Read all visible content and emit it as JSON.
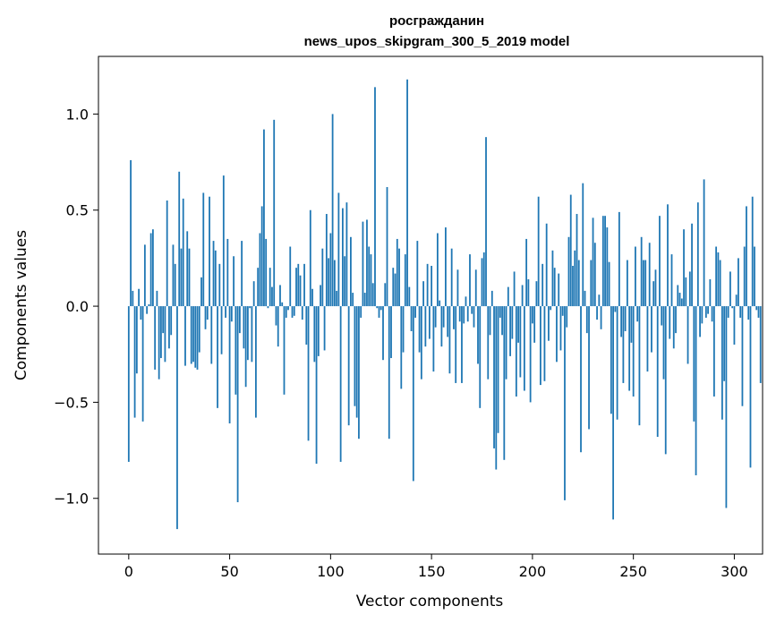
{
  "chart_data": {
    "type": "bar",
    "title": "росгражданин",
    "subtitle": "news_upos_skipgram_300_5_2019 model",
    "xlabel": "Vector components",
    "ylabel": "Components values",
    "xlim": [
      -15,
      314
    ],
    "ylim": [
      -1.29,
      1.3
    ],
    "xticks": [
      0,
      50,
      100,
      150,
      200,
      250,
      300
    ],
    "yticks": [
      -1.0,
      -0.5,
      0.0,
      0.5,
      1.0
    ],
    "ytick_labels": [
      "−1.0",
      "−0.5",
      "0.0",
      "0.5",
      "1.0"
    ],
    "xtick_labels": [
      "0",
      "50",
      "100",
      "150",
      "200",
      "250",
      "300"
    ],
    "grid": false,
    "bar_color": "#1f77b4",
    "values": [
      -0.81,
      0.76,
      0.08,
      -0.58,
      -0.35,
      0.09,
      -0.07,
      -0.6,
      0.32,
      -0.04,
      0.01,
      0.38,
      0.4,
      -0.33,
      0.08,
      -0.38,
      -0.27,
      -0.14,
      -0.29,
      0.55,
      -0.22,
      -0.15,
      0.32,
      0.22,
      -1.16,
      0.7,
      0.3,
      0.56,
      -0.31,
      0.39,
      0.3,
      -0.3,
      -0.29,
      -0.32,
      -0.33,
      -0.24,
      0.15,
      0.59,
      -0.12,
      -0.07,
      0.57,
      -0.3,
      0.34,
      0.29,
      -0.53,
      0.22,
      -0.25,
      0.68,
      -0.06,
      0.35,
      -0.61,
      -0.08,
      0.26,
      -0.46,
      -1.02,
      -0.14,
      0.34,
      -0.22,
      -0.42,
      -0.28,
      -0.01,
      -0.29,
      0.13,
      -0.58,
      0.2,
      0.38,
      0.52,
      0.92,
      0.35,
      -0.01,
      0.2,
      0.1,
      0.97,
      -0.1,
      -0.21,
      0.11,
      0.02,
      -0.46,
      -0.06,
      -0.02,
      0.31,
      -0.06,
      -0.05,
      0.2,
      0.22,
      0.16,
      -0.07,
      0.22,
      -0.2,
      -0.7,
      0.5,
      0.09,
      -0.29,
      -0.82,
      -0.26,
      0.11,
      0.3,
      -0.23,
      0.48,
      0.25,
      0.38,
      1.0,
      0.24,
      0.08,
      0.59,
      -0.81,
      0.51,
      0.26,
      0.54,
      -0.62,
      0.36,
      0.07,
      -0.52,
      -0.58,
      -0.69,
      -0.06,
      0.44,
      0.07,
      0.45,
      0.31,
      0.27,
      0.12,
      1.14,
      -0.01,
      -0.06,
      -0.02,
      -0.28,
      0.12,
      0.62,
      -0.69,
      -0.27,
      0.2,
      0.17,
      0.35,
      0.3,
      -0.43,
      -0.24,
      0.27,
      1.18,
      0.1,
      -0.13,
      -0.91,
      -0.06,
      0.34,
      -0.24,
      -0.38,
      0.13,
      -0.21,
      0.22,
      -0.17,
      0.21,
      -0.34,
      -0.11,
      0.38,
      0.03,
      -0.21,
      -0.11,
      0.41,
      -0.16,
      -0.35,
      0.3,
      -0.12,
      -0.4,
      0.19,
      -0.08,
      -0.4,
      -0.09,
      0.05,
      -0.08,
      0.27,
      -0.04,
      -0.11,
      0.19,
      -0.3,
      -0.53,
      0.25,
      0.28,
      0.88,
      -0.38,
      -0.15,
      0.08,
      -0.74,
      -0.85,
      -0.66,
      -0.06,
      -0.15,
      -0.8,
      -0.38,
      0.1,
      -0.26,
      -0.17,
      0.18,
      -0.47,
      -0.19,
      -0.37,
      0.11,
      -0.44,
      0.35,
      0.14,
      -0.5,
      -0.09,
      -0.19,
      0.13,
      0.57,
      -0.41,
      0.22,
      -0.39,
      0.43,
      -0.18,
      -0.02,
      0.29,
      0.2,
      -0.29,
      0.17,
      -0.23,
      -0.05,
      -1.01,
      -0.11,
      0.36,
      0.58,
      0.21,
      0.29,
      0.48,
      0.24,
      -0.76,
      0.64,
      0.08,
      -0.14,
      -0.64,
      0.24,
      0.46,
      0.33,
      -0.07,
      0.06,
      -0.12,
      0.47,
      0.47,
      0.41,
      0.23,
      -0.56,
      -1.11,
      -0.03,
      -0.59,
      0.49,
      -0.16,
      -0.4,
      -0.13,
      0.24,
      -0.44,
      -0.19,
      -0.47,
      0.31,
      -0.08,
      -0.62,
      0.36,
      0.24,
      0.24,
      -0.34,
      0.33,
      -0.24,
      0.13,
      0.19,
      -0.68,
      0.47,
      -0.1,
      -0.38,
      -0.77,
      0.53,
      -0.17,
      0.27,
      -0.22,
      -0.14,
      0.11,
      0.07,
      0.04,
      0.4,
      0.15,
      -0.3,
      0.18,
      0.43,
      -0.6,
      -0.88,
      0.54,
      -0.16,
      -0.09,
      0.66,
      -0.06,
      -0.04,
      0.14,
      -0.08,
      -0.47,
      0.31,
      0.28,
      0.24,
      -0.59,
      -0.39,
      -1.05,
      -0.06,
      0.18,
      -0.01,
      -0.2,
      0.06,
      0.25,
      -0.06,
      -0.52,
      0.31,
      0.52,
      -0.07,
      -0.84,
      0.57,
      0.31,
      -0.02,
      -0.06,
      -0.4
    ]
  }
}
